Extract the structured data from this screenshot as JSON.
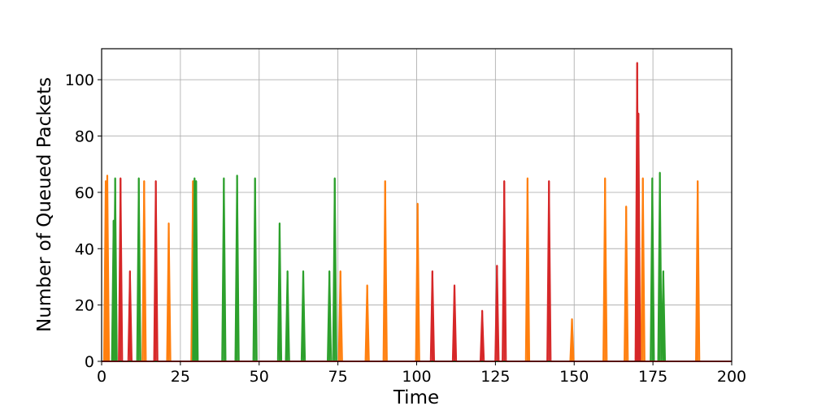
{
  "chart_data": {
    "type": "line",
    "xlabel": "Time",
    "ylabel": "Number of Queued Packets",
    "xlim": [
      0,
      200
    ],
    "ylim": [
      0,
      111
    ],
    "xticks": [
      0,
      25,
      50,
      75,
      100,
      125,
      150,
      175,
      200
    ],
    "yticks": [
      0,
      20,
      40,
      60,
      80,
      100
    ],
    "grid": true,
    "legend": "none",
    "series": [
      {
        "color": "#ff7f0e",
        "spikes": [
          {
            "x": 1.3,
            "y": 64
          },
          {
            "x": 1.8,
            "y": 66
          },
          {
            "x": 13.5,
            "y": 64
          },
          {
            "x": 21.3,
            "y": 49
          },
          {
            "x": 29.0,
            "y": 64
          },
          {
            "x": 75.8,
            "y": 32
          },
          {
            "x": 84.3,
            "y": 27
          },
          {
            "x": 90.0,
            "y": 64
          },
          {
            "x": 100.3,
            "y": 56
          },
          {
            "x": 135.2,
            "y": 65
          },
          {
            "x": 149.3,
            "y": 15
          },
          {
            "x": 159.8,
            "y": 65
          },
          {
            "x": 166.5,
            "y": 55
          },
          {
            "x": 171.8,
            "y": 65
          },
          {
            "x": 189.2,
            "y": 64
          }
        ]
      },
      {
        "color": "#2ca02c",
        "spikes": [
          {
            "x": 3.8,
            "y": 50
          },
          {
            "x": 4.3,
            "y": 65
          },
          {
            "x": 11.8,
            "y": 65
          },
          {
            "x": 29.5,
            "y": 65
          },
          {
            "x": 30.0,
            "y": 64
          },
          {
            "x": 38.8,
            "y": 65
          },
          {
            "x": 43.0,
            "y": 66
          },
          {
            "x": 48.7,
            "y": 65
          },
          {
            "x": 56.5,
            "y": 49
          },
          {
            "x": 59.0,
            "y": 32
          },
          {
            "x": 64.0,
            "y": 32
          },
          {
            "x": 72.3,
            "y": 32
          },
          {
            "x": 74.0,
            "y": 65
          },
          {
            "x": 174.8,
            "y": 65
          },
          {
            "x": 177.2,
            "y": 67
          },
          {
            "x": 178.3,
            "y": 32
          }
        ]
      },
      {
        "color": "#d62728",
        "spikes": [
          {
            "x": 6.0,
            "y": 65
          },
          {
            "x": 9.0,
            "y": 32
          },
          {
            "x": 17.2,
            "y": 64
          },
          {
            "x": 105.0,
            "y": 32
          },
          {
            "x": 112.0,
            "y": 27
          },
          {
            "x": 120.8,
            "y": 18
          },
          {
            "x": 125.5,
            "y": 34
          },
          {
            "x": 127.8,
            "y": 64
          },
          {
            "x": 142.0,
            "y": 64
          },
          {
            "x": 170.0,
            "y": 106
          },
          {
            "x": 170.4,
            "y": 88
          }
        ]
      }
    ]
  }
}
